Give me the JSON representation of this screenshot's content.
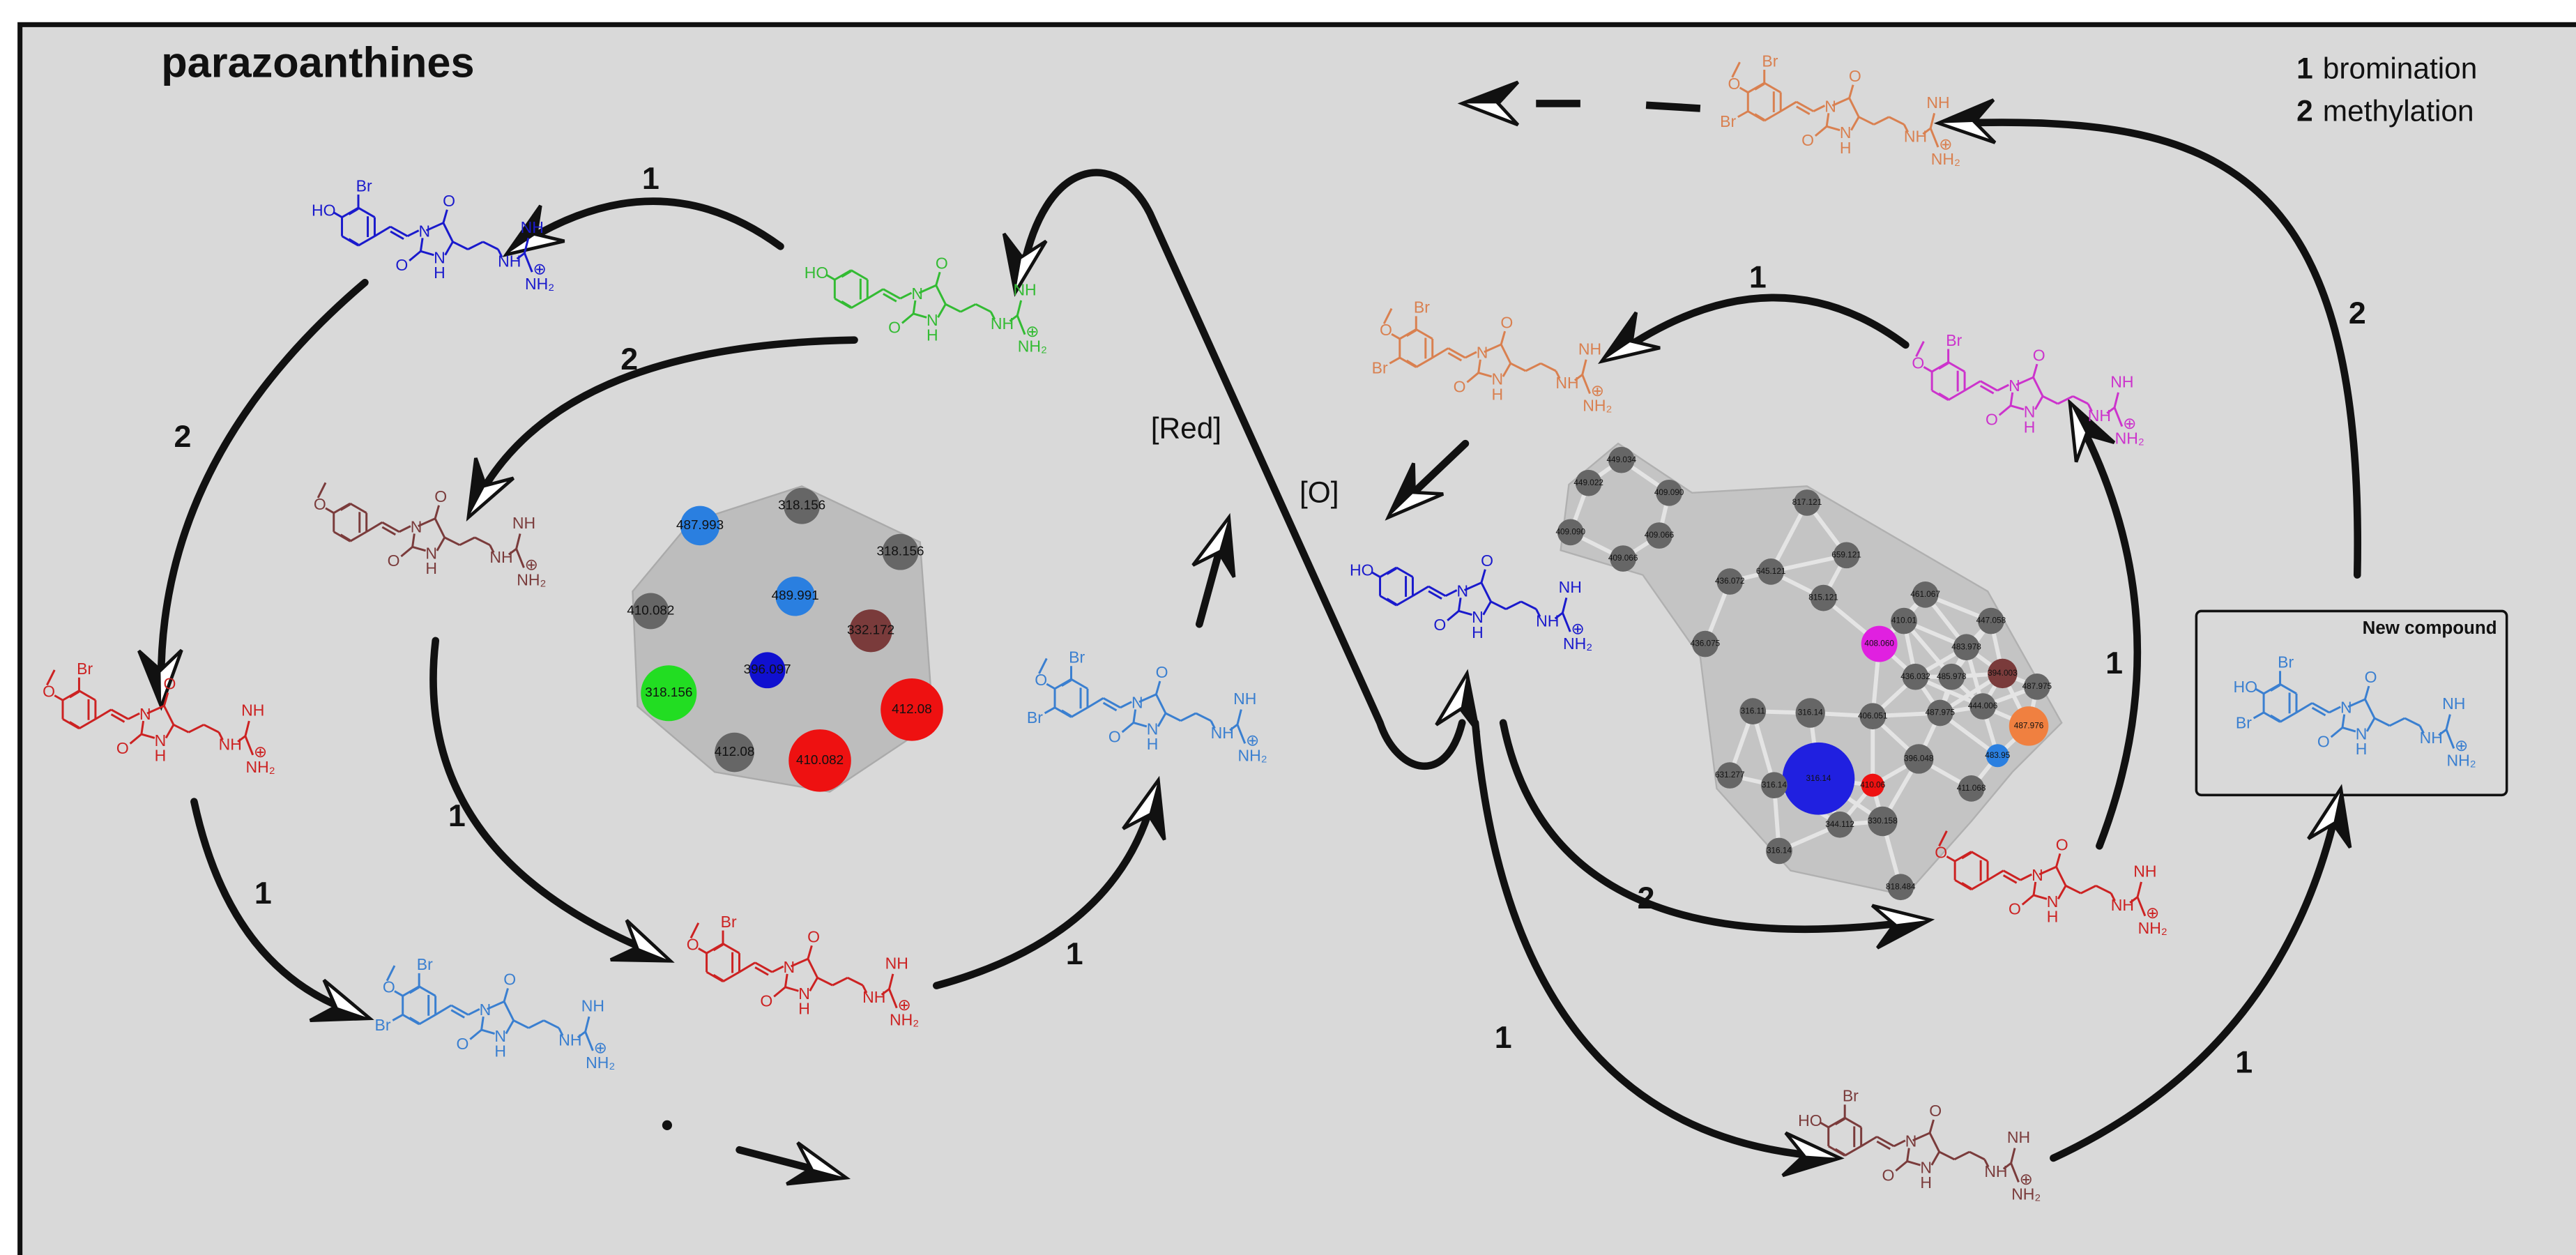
{
  "title": "parazoanthines",
  "legend": [
    {
      "number": "1",
      "text": "bromination"
    },
    {
      "number": "2",
      "text": "methylation"
    }
  ],
  "steps": [
    "1",
    "2",
    "2",
    "1",
    "1",
    "1",
    "1",
    "2",
    "1",
    "2",
    "1",
    "1"
  ],
  "conditions": [
    "[Red]",
    "[O]"
  ],
  "new_compound_label": "New compound",
  "core_labels": [
    "N",
    "O",
    "O",
    "N",
    "H",
    "NH",
    "NH",
    "NH₂",
    "⊕"
  ],
  "molecules": [
    {
      "color": "#1a1acc",
      "substituents": [
        "HO",
        "Br"
      ]
    },
    {
      "color": "#33bb33",
      "substituents": [
        "HO"
      ]
    },
    {
      "color": "#7a3b3b",
      "substituents": [
        "O"
      ]
    },
    {
      "color": "#cc2222",
      "substituents": [
        "O",
        "Br"
      ]
    },
    {
      "color": "#3a7fd0",
      "substituents": [
        "O",
        "Br",
        "Br"
      ]
    },
    {
      "color": "#cc2222",
      "substituents": [
        "O",
        "Br"
      ]
    },
    {
      "color": "#3a7fd0",
      "substituents": [
        "O",
        "Br",
        "Br"
      ]
    },
    {
      "color": "#1a1acc",
      "substituents": [
        "HO"
      ]
    },
    {
      "color": "#d98050",
      "substituents": [
        "O",
        "Br",
        "Br"
      ]
    },
    {
      "color": "#cc33cc",
      "substituents": [
        "O",
        "Br"
      ]
    },
    {
      "color": "#d98050",
      "substituents": [
        "O",
        "Br",
        "Br"
      ]
    },
    {
      "color": "#cc2222",
      "substituents": [
        "O"
      ]
    },
    {
      "color": "#7a3b3b",
      "substituents": [
        "HO",
        "Br"
      ]
    },
    {
      "color": "#3a7fd0",
      "substituents": [
        "HO",
        "Br",
        "Br"
      ]
    }
  ],
  "networks": [
    {
      "nodes": [
        {
          "label": "318.156",
          "color": "#666666"
        },
        {
          "label": "318.156",
          "color": "#666666"
        },
        {
          "label": "487.993",
          "color": "#2a7fe0"
        },
        {
          "label": "489.991",
          "color": "#2a7fe0"
        },
        {
          "label": "410.082",
          "color": "#666666"
        },
        {
          "label": "332.172",
          "color": "#7a3b3b"
        },
        {
          "label": "396.097",
          "color": "#1010d0"
        },
        {
          "label": "318.156",
          "color": "#22dd22"
        },
        {
          "label": "412.08",
          "color": "#ee1111"
        },
        {
          "label": "412.08",
          "color": "#666666"
        },
        {
          "label": "410.082",
          "color": "#ee1111"
        }
      ]
    },
    {
      "nodes": [
        {
          "label": "449.034",
          "color": "#666666"
        },
        {
          "label": "449.022",
          "color": "#666666"
        },
        {
          "label": "409.090",
          "color": "#666666"
        },
        {
          "label": "409.090",
          "color": "#666666"
        },
        {
          "label": "409.066",
          "color": "#666666"
        },
        {
          "label": "409.066",
          "color": "#666666"
        },
        {
          "label": "817.121",
          "color": "#666666"
        },
        {
          "label": "436.072",
          "color": "#666666"
        },
        {
          "label": "645.121",
          "color": "#666666"
        },
        {
          "label": "659.121",
          "color": "#666666"
        },
        {
          "label": "815.121",
          "color": "#666666"
        },
        {
          "label": "461.067",
          "color": "#666666"
        },
        {
          "label": "447.058",
          "color": "#666666"
        },
        {
          "label": "436.075",
          "color": "#666666"
        },
        {
          "label": "410.01",
          "color": "#666666"
        },
        {
          "label": "408.060",
          "color": "#e020e0"
        },
        {
          "label": "483.978",
          "color": "#666666"
        },
        {
          "label": "436.032",
          "color": "#666666"
        },
        {
          "label": "485.978",
          "color": "#666666"
        },
        {
          "label": "394.003",
          "color": "#7a3b3b"
        },
        {
          "label": "487.975",
          "color": "#666666"
        },
        {
          "label": "487.975",
          "color": "#666666"
        },
        {
          "label": "444.006",
          "color": "#666666"
        },
        {
          "label": "487.976",
          "color": "#f08040"
        },
        {
          "label": "316.11",
          "color": "#666666"
        },
        {
          "label": "316.14",
          "color": "#666666"
        },
        {
          "label": "406.051",
          "color": "#666666"
        },
        {
          "label": "483.95",
          "color": "#2a7fe0"
        },
        {
          "label": "396.048",
          "color": "#666666"
        },
        {
          "label": "631.277",
          "color": "#666666"
        },
        {
          "label": "316.14",
          "color": "#2020e0"
        },
        {
          "label": "410.06",
          "color": "#ee1111"
        },
        {
          "label": "411.068",
          "color": "#666666"
        },
        {
          "label": "316.14",
          "color": "#666666"
        },
        {
          "label": "344.112",
          "color": "#666666"
        },
        {
          "label": "330.158",
          "color": "#666666"
        },
        {
          "label": "316.14",
          "color": "#666666"
        },
        {
          "label": "818.484",
          "color": "#666666"
        }
      ]
    }
  ]
}
